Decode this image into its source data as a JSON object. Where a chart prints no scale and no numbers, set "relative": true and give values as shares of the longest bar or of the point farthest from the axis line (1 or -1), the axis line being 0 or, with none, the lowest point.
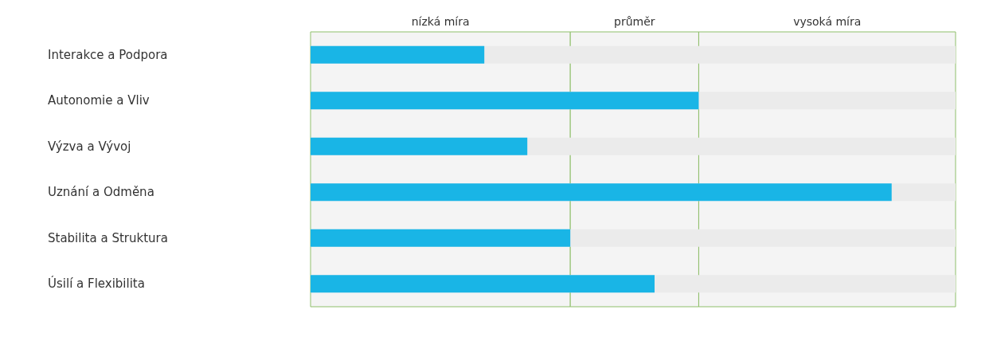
{
  "chart_data": {
    "type": "bar",
    "orientation": "horizontal",
    "relative": true,
    "categories": [
      "Interakce a Podpora",
      "Autonomie a Vliv",
      "Výzva a Vývoj",
      "Uznání a Odměna",
      "Stabilita a Struktura",
      "Úsilí a Flexibilita"
    ],
    "values": [
      0.299,
      0.668,
      0.373,
      1,
      0.447,
      0.592
    ],
    "color": "#19b5e6",
    "bands": [
      {
        "axis": "x",
        "from": 0,
        "to": 0.447,
        "label": "nízká míra",
        "color": "#f4f4f4"
      },
      {
        "axis": "x",
        "from": 0.447,
        "to": 0.668,
        "label": "průměr",
        "color": "#f4f4f4"
      },
      {
        "axis": "x",
        "from": 0.668,
        "to": 1.11,
        "label": "vysoká míra",
        "color": "#f4f4f4"
      }
    ]
  }
}
